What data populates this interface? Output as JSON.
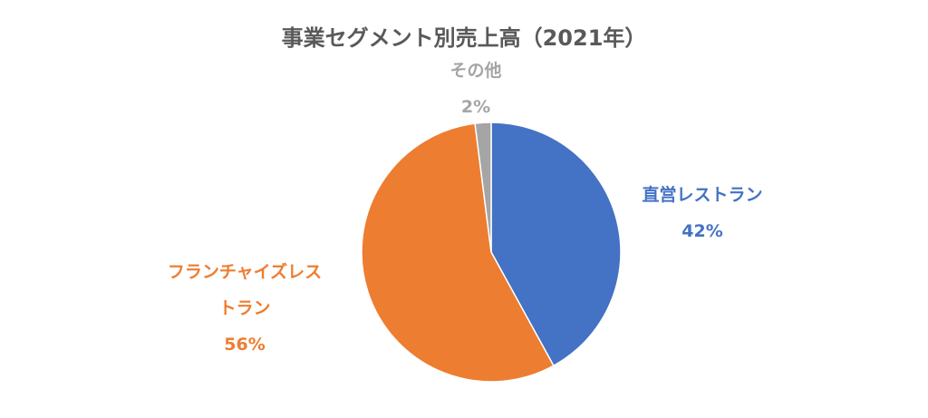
{
  "chart_data": {
    "type": "pie",
    "title": "事業セグメント別売上高（2021年）",
    "categories": [
      "直営レストラン",
      "フランチャイズレストラン",
      "その他"
    ],
    "values": [
      42,
      56,
      2
    ],
    "value_labels": [
      "42%",
      "56%",
      "2%"
    ],
    "colors": [
      "#4472c4",
      "#ed7d31",
      "#a5a5a5"
    ]
  }
}
